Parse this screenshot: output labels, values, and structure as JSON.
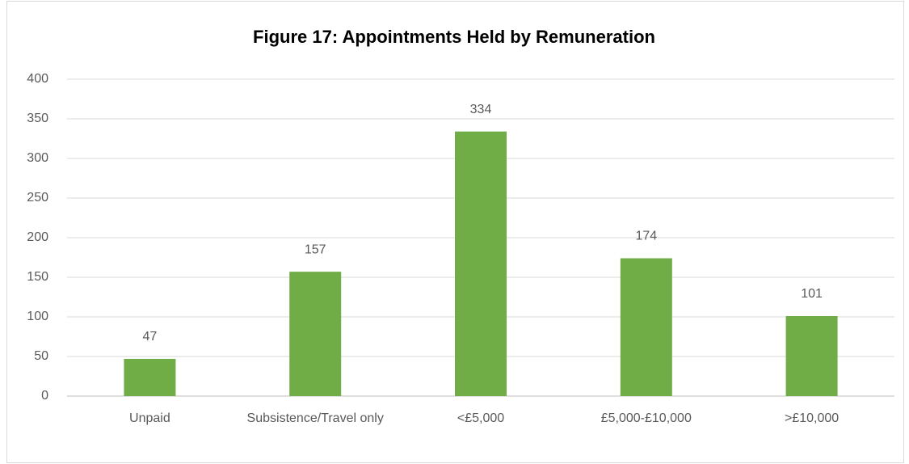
{
  "chart_data": {
    "type": "bar",
    "title": "Figure 17: Appointments Held by Remuneration",
    "categories": [
      "Unpaid",
      "Subsistence/Travel only",
      "<£5,000",
      "£5,000-£10,000",
      ">£10,000"
    ],
    "values": [
      47,
      157,
      334,
      174,
      101
    ],
    "color": "#70ad47",
    "ylim": [
      0,
      400
    ],
    "yticks": [
      0,
      50,
      100,
      150,
      200,
      250,
      300,
      350,
      400
    ],
    "grid": true
  }
}
